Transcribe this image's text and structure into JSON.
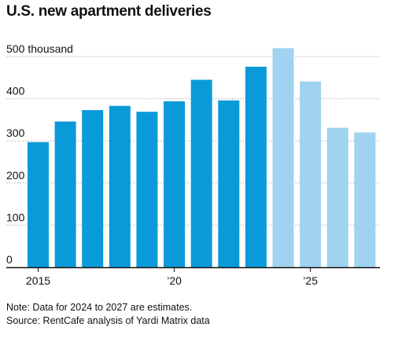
{
  "header": {
    "title": "U.S. new apartment deliveries"
  },
  "notes": {
    "note": "Note: Data for 2024 to 2027 are estimates.",
    "source": "Source: RentCafe analysis of Yardi Matrix data"
  },
  "colors": {
    "actual": "#0a9ad9",
    "estimate": "#9fd3f0",
    "grid": "#b0b0b0",
    "axis": "#111111"
  },
  "chart_data": {
    "type": "bar",
    "title": "U.S. new apartment deliveries",
    "unit_label": "thousand",
    "categories": [
      2015,
      2016,
      2017,
      2018,
      2019,
      2020,
      2021,
      2022,
      2023,
      2024,
      2025,
      2026,
      2027
    ],
    "values": [
      297,
      346,
      373,
      383,
      369,
      394,
      445,
      396,
      476,
      520,
      441,
      331,
      320
    ],
    "estimated": [
      false,
      false,
      false,
      false,
      false,
      false,
      false,
      false,
      false,
      true,
      true,
      true,
      true
    ],
    "ylim": [
      0,
      500
    ],
    "yticks": [
      0,
      100,
      200,
      300,
      400,
      500
    ],
    "ytick_labels": [
      "0",
      "100",
      "200",
      "300",
      "400",
      "500"
    ],
    "xtick_positions": [
      2015,
      2020,
      2025
    ],
    "xtick_labels": [
      "2015",
      "’20",
      "’25"
    ],
    "grid": true,
    "legend": "none"
  }
}
